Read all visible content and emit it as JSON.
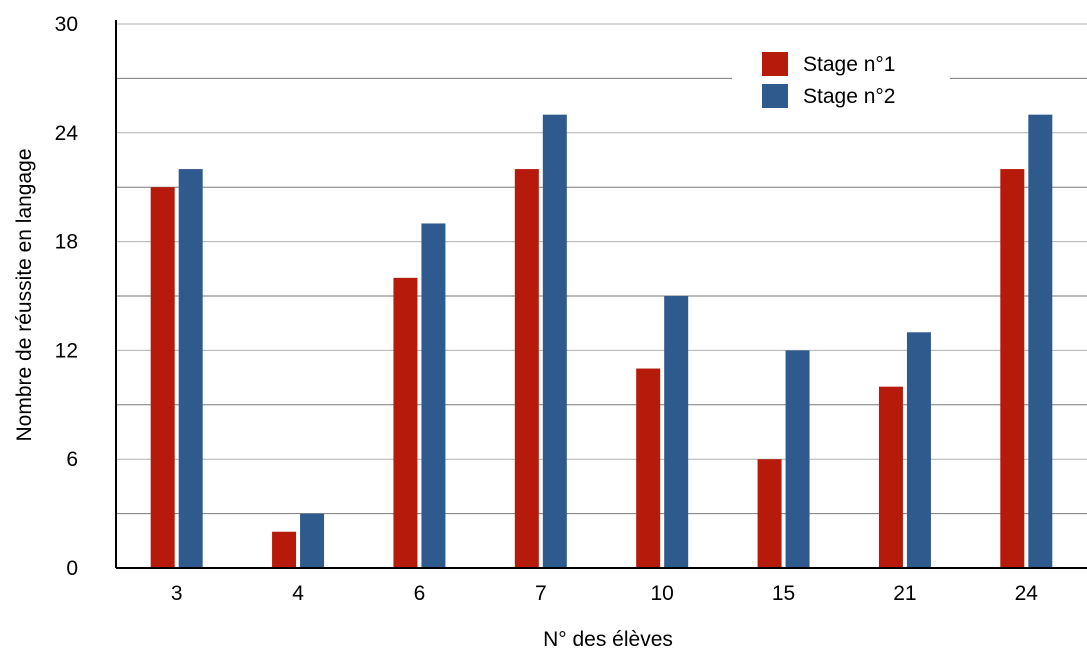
{
  "chart_data": {
    "type": "bar",
    "title": "",
    "xlabel": "N° des élèves",
    "ylabel": "Nombre de réussite en langage",
    "categories": [
      "3",
      "4",
      "6",
      "7",
      "10",
      "15",
      "21",
      "24"
    ],
    "ylim": [
      0,
      30
    ],
    "yticks": [
      "0",
      "6",
      "12",
      "18",
      "24",
      "30"
    ],
    "grid": true,
    "legend_position": "top-right",
    "series": [
      {
        "name": "Stage n°1",
        "color": "#b51a0a",
        "values": [
          21,
          2,
          16,
          22,
          11,
          6,
          10,
          22
        ]
      },
      {
        "name": "Stage n°2",
        "color": "#2e5a8e",
        "values": [
          22,
          3,
          19,
          25,
          15,
          12,
          13,
          25
        ]
      }
    ]
  }
}
